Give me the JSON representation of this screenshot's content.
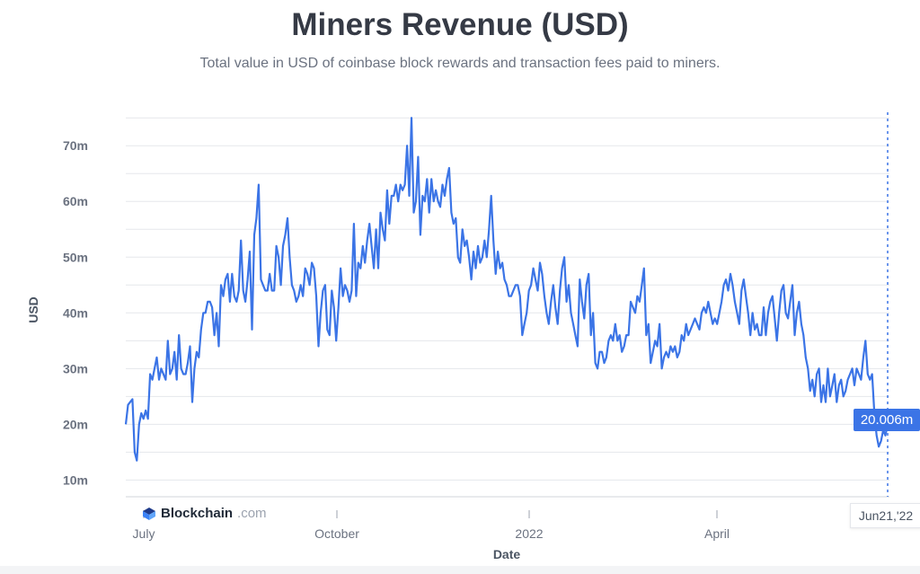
{
  "chart_data": {
    "type": "line",
    "title": "Miners Revenue (USD)",
    "subtitle": "Total value in USD of coinbase block rewards and transaction fees paid to miners.",
    "xlabel": "Date",
    "ylabel": "USD",
    "x_ticks": [
      "July",
      "October",
      "2022",
      "April"
    ],
    "y_ticks": [
      "10m",
      "20m",
      "30m",
      "40m",
      "50m",
      "60m",
      "70m"
    ],
    "ylim": [
      7,
      76
    ],
    "grid": true,
    "series": [
      {
        "values": [
          20,
          23.5,
          24,
          24.5,
          15,
          13.5,
          20,
          22,
          21,
          22.5,
          21,
          29,
          28,
          30,
          32,
          28,
          30,
          29,
          28,
          35,
          29,
          30,
          33,
          28,
          36,
          30,
          29,
          29,
          31,
          34,
          24,
          30,
          33,
          32,
          37,
          40,
          40,
          42,
          42,
          41,
          36,
          40,
          34,
          45,
          43,
          46,
          47,
          42,
          47,
          43,
          42,
          44,
          53,
          44,
          42,
          46,
          51,
          37,
          54,
          57,
          63,
          46,
          45,
          44,
          44,
          47,
          44,
          44,
          52,
          50,
          45,
          52,
          54,
          57,
          50,
          45,
          44,
          42,
          43,
          45,
          43,
          48,
          47,
          45,
          49,
          48,
          43,
          34,
          40,
          44,
          45,
          37,
          36,
          44,
          41,
          35,
          41,
          48,
          43,
          45,
          44,
          42,
          44,
          56,
          43,
          49,
          48,
          52,
          49,
          53,
          56,
          52,
          48,
          55,
          48,
          58,
          55,
          53,
          62,
          56,
          61,
          61,
          63,
          60,
          63,
          62,
          63,
          70,
          61,
          75,
          58,
          60,
          68,
          54,
          61,
          60,
          64,
          58,
          64,
          60,
          62,
          60,
          59,
          63,
          61,
          64,
          66,
          58,
          56,
          57,
          50,
          49,
          55,
          52,
          53,
          50,
          46,
          51,
          48,
          52,
          49,
          50,
          53,
          50,
          55,
          61,
          53,
          47,
          51,
          48,
          49,
          46,
          45,
          43,
          43,
          44,
          45,
          45,
          43,
          36,
          38,
          40,
          44,
          45,
          48,
          46,
          44,
          49,
          47,
          43,
          40,
          38,
          42,
          45,
          41,
          38,
          44,
          48,
          50,
          42,
          45,
          40,
          38,
          36,
          34,
          46,
          42,
          39,
          45,
          47,
          36,
          40,
          31,
          30,
          33,
          33,
          31,
          32,
          35,
          36,
          35,
          38,
          35,
          36,
          33,
          34,
          36,
          36,
          42,
          41,
          40,
          43,
          42,
          45,
          48,
          36,
          38,
          31,
          33,
          35,
          34,
          38,
          30,
          32,
          33,
          32,
          34,
          33,
          34,
          32,
          33,
          36,
          35,
          38,
          36,
          37,
          38,
          39,
          38,
          37,
          40,
          41,
          40,
          42,
          40,
          38,
          39,
          38,
          40,
          42,
          45,
          46,
          44,
          47,
          45,
          42,
          40,
          38,
          44,
          46,
          43,
          40,
          36,
          40,
          37,
          38,
          36,
          36,
          41,
          36,
          40,
          42,
          43,
          39,
          35,
          40,
          44,
          45,
          40,
          39,
          42,
          45,
          36,
          40,
          42,
          38,
          36,
          32,
          30,
          26,
          28,
          25,
          29,
          30,
          24,
          27,
          24,
          30,
          25,
          27,
          29,
          24,
          27,
          28,
          25,
          26,
          28,
          29,
          30,
          27,
          30,
          29,
          28,
          32,
          35,
          29,
          28,
          29,
          22,
          18,
          16,
          17,
          19,
          18,
          20
        ]
      }
    ],
    "tooltip_value": "20.006m",
    "last_date": "Jun21,'22",
    "colors": {
      "line": "#3b74e6",
      "grid": "#e5e7eb",
      "tooltip_bg": "#3b74e6"
    }
  },
  "brand": {
    "name": "Blockchain",
    "suffix": ".com"
  }
}
